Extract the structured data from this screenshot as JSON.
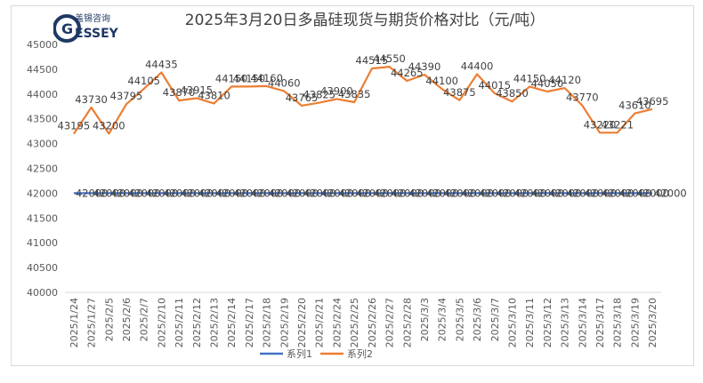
{
  "logo": {
    "cn": "盖锡咨询",
    "en_first": "G",
    "en_rest": "ESSEY"
  },
  "chart_data": {
    "type": "line",
    "title": "2025年3月20日多晶硅现货与期货价格对比（元/吨）",
    "xlabel": "",
    "ylabel": "",
    "ylim": [
      40000,
      45000
    ],
    "yticks": [
      40000,
      40500,
      41000,
      41500,
      42000,
      42500,
      43000,
      43500,
      44000,
      44500,
      45000
    ],
    "grid": false,
    "legend": "bottom",
    "categories": [
      "2025/1/24",
      "2025/1/27",
      "2025/2/5",
      "2025/2/6",
      "2025/2/7",
      "2025/2/10",
      "2025/2/11",
      "2025/2/12",
      "2025/2/13",
      "2025/2/14",
      "2025/2/17",
      "2025/2/18",
      "2025/2/19",
      "2025/2/20",
      "2025/2/21",
      "2025/2/24",
      "2025/2/25",
      "2025/2/26",
      "2025/2/27",
      "2025/2/28",
      "2025/3/3",
      "2025/3/4",
      "2025/3/5",
      "2025/3/6",
      "2025/3/7",
      "2025/3/10",
      "2025/3/11",
      "2025/3/12",
      "2025/3/13",
      "2025/3/14",
      "2025/3/17",
      "2025/3/18",
      "2025/3/19",
      "2025/3/20"
    ],
    "series": [
      {
        "name": "系列1",
        "color": "#4472c4",
        "data_label_text": "42000",
        "values": [
          42000,
          42000,
          42000,
          42000,
          42000,
          42000,
          42000,
          42000,
          42000,
          42000,
          42000,
          42000,
          42000,
          42000,
          42000,
          42000,
          42000,
          42000,
          42000,
          42000,
          42000,
          42000,
          42000,
          42000,
          42000,
          42000,
          42000,
          42000,
          42000,
          42000,
          42000,
          42000,
          42000,
          42000
        ]
      },
      {
        "name": "系列2",
        "color": "#ed7d31",
        "values": [
          43195,
          43730,
          43200,
          43795,
          44105,
          44435,
          43870,
          43915,
          43810,
          44150,
          44150,
          44160,
          44060,
          43765,
          43825,
          43900,
          43835,
          44515,
          44550,
          44265,
          44390,
          44100,
          43875,
          44400,
          44015,
          43850,
          44150,
          44050,
          44120,
          43770,
          43220,
          43221,
          43610,
          43695
        ]
      }
    ]
  }
}
